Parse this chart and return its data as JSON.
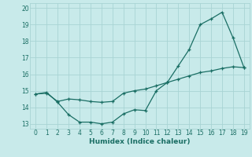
{
  "xlabel": "Humidex (Indice chaleur)",
  "xlim": [
    -0.5,
    19.5
  ],
  "ylim": [
    12.7,
    20.3
  ],
  "xticks": [
    0,
    1,
    2,
    3,
    4,
    5,
    6,
    7,
    8,
    9,
    10,
    11,
    12,
    13,
    14,
    15,
    16,
    17,
    18,
    19
  ],
  "yticks": [
    13,
    14,
    15,
    16,
    17,
    18,
    19,
    20
  ],
  "background_color": "#c8eaea",
  "line_color": "#1a6e64",
  "grid_color": "#a8d4d4",
  "series1_x": [
    0,
    1,
    2,
    3,
    4,
    5,
    6,
    7,
    8,
    9,
    10,
    11,
    12,
    13,
    14,
    15,
    16,
    17,
    18,
    19
  ],
  "series1_y": [
    14.8,
    14.9,
    14.3,
    13.55,
    13.1,
    13.1,
    13.0,
    13.1,
    13.6,
    13.85,
    13.8,
    15.0,
    15.5,
    16.5,
    17.5,
    19.0,
    19.35,
    19.75,
    18.2,
    16.4
  ],
  "series2_x": [
    0,
    1,
    2,
    3,
    4,
    5,
    6,
    7,
    8,
    9,
    10,
    11,
    12,
    13,
    14,
    15,
    16,
    17,
    18,
    19
  ],
  "series2_y": [
    14.8,
    14.85,
    14.35,
    14.5,
    14.45,
    14.35,
    14.3,
    14.35,
    14.85,
    15.0,
    15.1,
    15.3,
    15.5,
    15.7,
    15.9,
    16.1,
    16.2,
    16.35,
    16.45,
    16.4
  ]
}
